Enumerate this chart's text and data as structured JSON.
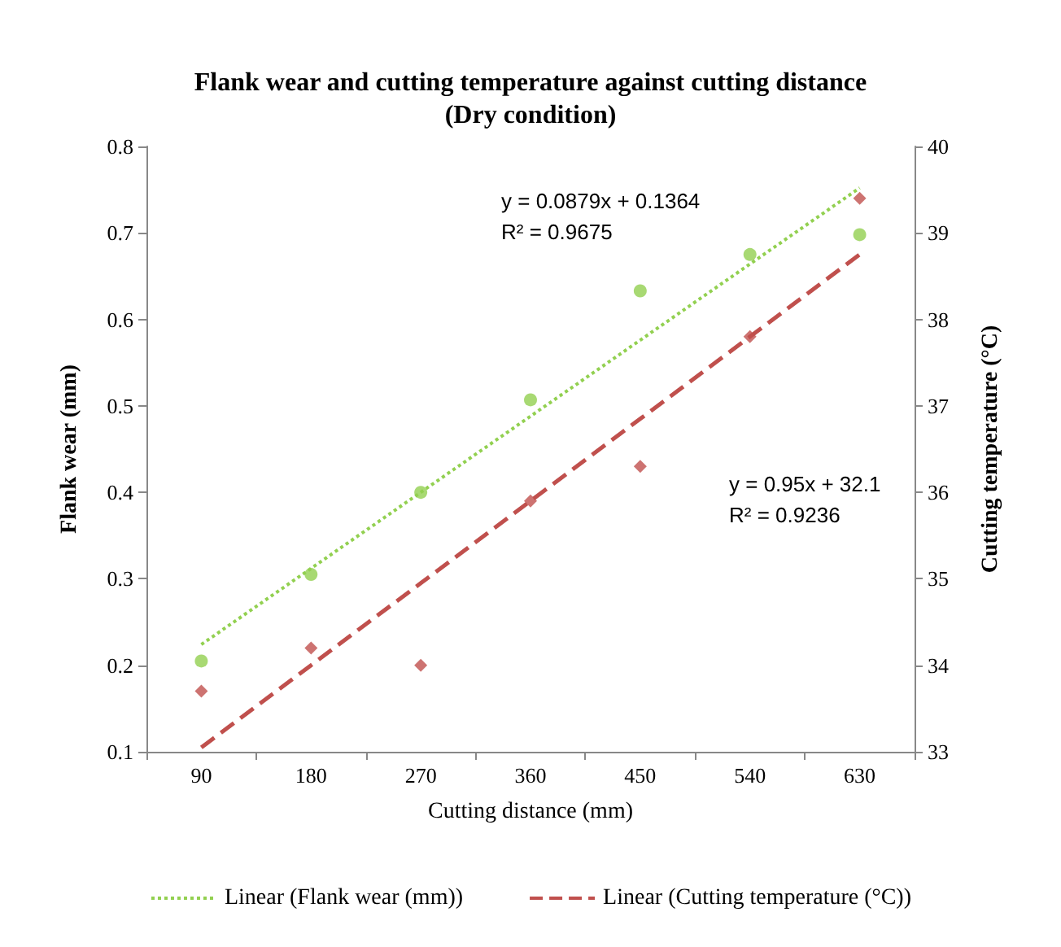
{
  "chart_data": {
    "type": "scatter",
    "title": "Flank wear and cutting temperature against cutting distance",
    "subtitle": "(Dry condition)",
    "xlabel": "Cutting distance (mm)",
    "ylabel": "Flank wear (mm)",
    "y2label": "Cutting temperature (°C)",
    "categories": [
      "90",
      "180",
      "270",
      "360",
      "450",
      "540",
      "630"
    ],
    "ylim": [
      0.1,
      0.8
    ],
    "yticks": [
      0.1,
      0.2,
      0.3,
      0.4,
      0.5,
      0.6,
      0.7,
      0.8
    ],
    "y2lim": [
      33,
      40
    ],
    "y2ticks": [
      33,
      34,
      35,
      36,
      37,
      38,
      39,
      40
    ],
    "grid": false,
    "legend": "bottom",
    "annotations": [
      "y = 0.0879x + 0.1364\nR² = 0.9675",
      "y = 0.95x + 32.1\nR² = 0.9236"
    ],
    "series": [
      {
        "color": "#92d050",
        "marker": "circle",
        "values": [
          0.205,
          0.305,
          0.4,
          0.507,
          0.633,
          0.675,
          0.698
        ]
      },
      {
        "color": "#c0504d",
        "marker": "diamond",
        "axis": "y2",
        "values": [
          33.7,
          34.2,
          34.0,
          35.9,
          36.3,
          37.8,
          39.4
        ]
      },
      {
        "type": "line",
        "name": "Linear (Flank wear (mm))",
        "color": "#92d050",
        "marker": "none",
        "line_style": "dotted",
        "values": [
          0.224,
          0.312,
          0.4,
          0.488,
          0.576,
          0.664,
          0.752
        ]
      },
      {
        "type": "line",
        "name": "Linear (Cutting temperature (°C))",
        "color": "#c0504d",
        "marker": "none",
        "line_style": "dashed",
        "axis": "y2",
        "values": [
          33.05,
          34.0,
          34.95,
          35.9,
          36.85,
          37.8,
          38.75
        ]
      }
    ]
  }
}
